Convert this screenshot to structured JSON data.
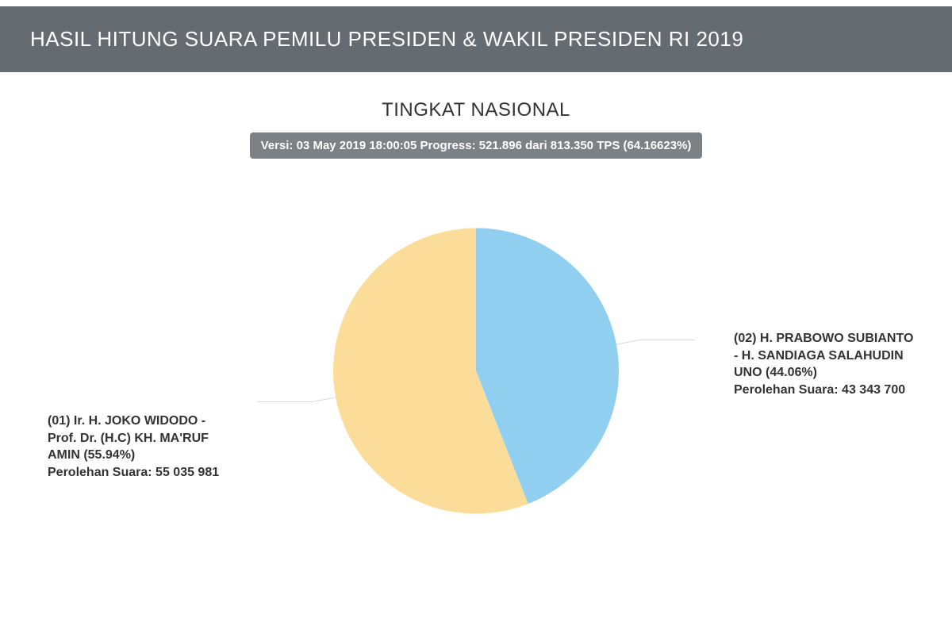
{
  "header": {
    "title": "HASIL HITUNG SUARA PEMILU PRESIDEN & WAKIL PRESIDEN RI 2019"
  },
  "subtitle": "TINGKAT NASIONAL",
  "version": {
    "text": "Versi: 03 May 2019 18:00:05 Progress: 521.896 dari 813.350 TPS (64.16623%)"
  },
  "chart": {
    "type": "pie",
    "radius": 180,
    "background_color": "#ffffff",
    "slices": [
      {
        "id": "01",
        "percent": 55.94,
        "color": "#fbdd99",
        "name_line1": "(01) Ir. H. JOKO WIDODO -",
        "name_line2": "Prof. Dr. (H.C) KH. MA'RUF",
        "name_line3": "AMIN (55.94%)",
        "votes_label": "Perolehan Suara: 55 035 981"
      },
      {
        "id": "02",
        "percent": 44.06,
        "color": "#90cff0",
        "name_line1": "(02) H. PRABOWO SUBIANTO",
        "name_line2": "- H. SANDIAGA SALAHUDIN",
        "name_line3": "UNO (44.06%)",
        "votes_label": "Perolehan Suara: 43 343 700"
      }
    ],
    "label_fontsize": 16,
    "label_fontweight": 700,
    "label_color": "#333333",
    "leader_color": "#d9d9d9"
  }
}
